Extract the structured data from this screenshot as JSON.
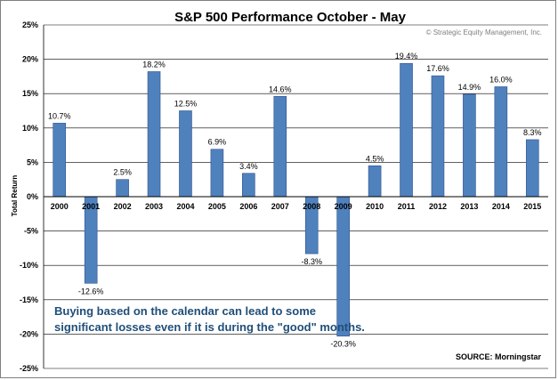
{
  "chart_data": {
    "type": "bar",
    "title": "S&P 500 Performance October - May",
    "xlabel": "",
    "ylabel": "Total Return",
    "ylim": [
      -25,
      25
    ],
    "yticks": [
      25,
      20,
      15,
      10,
      5,
      0,
      -5,
      -10,
      -15,
      -20,
      -25
    ],
    "ytick_labels": [
      "25%",
      "20%",
      "15%",
      "10%",
      "5%",
      "0%",
      "-5%",
      "-10%",
      "-15%",
      "-20%",
      "-25%"
    ],
    "grid": true,
    "categories": [
      "2000",
      "2001",
      "2002",
      "2003",
      "2004",
      "2005",
      "2006",
      "2007",
      "2008",
      "2009",
      "2010",
      "2011",
      "2012",
      "2013",
      "2014",
      "2015"
    ],
    "values": [
      10.7,
      -12.6,
      2.5,
      18.2,
      12.5,
      6.9,
      3.4,
      14.6,
      -8.3,
      -20.3,
      4.5,
      19.4,
      17.6,
      14.9,
      16.0,
      8.3
    ],
    "data_labels": [
      "10.7%",
      "-12.6%",
      "2.5%",
      "18.2%",
      "12.5%",
      "6.9%",
      "3.4%",
      "14.6%",
      "-8.3%",
      "-20.3%",
      "4.5%",
      "19.4%",
      "17.6%",
      "14.9%",
      "16.0%",
      "8.3%"
    ],
    "bar_color": "#4f81bd",
    "annotations": {
      "copyright": "© Strategic Equity Management, Inc.",
      "note_line1": "Buying based on the calendar can lead to some",
      "note_line2": "significant losses even if it is during the \"good\" months.",
      "source": "SOURCE:  Morningstar"
    }
  }
}
